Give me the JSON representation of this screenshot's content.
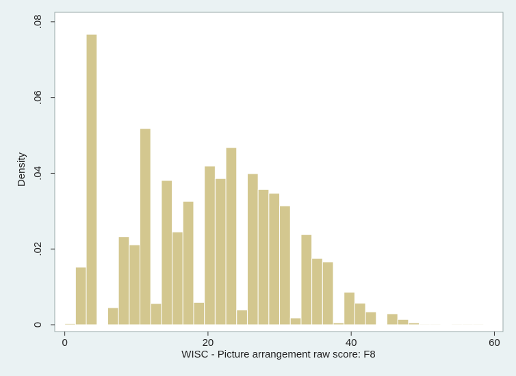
{
  "chart_data": {
    "type": "histogram",
    "x_label": "WISC - Picture arrangement raw score: F8",
    "y_label": "Density",
    "bins": [
      0,
      1.5,
      3,
      4.5,
      6,
      7.5,
      9,
      10.5,
      12,
      13.5,
      15,
      16.5,
      18,
      19.5,
      21,
      22.5,
      24,
      25.5,
      27,
      28.5,
      30,
      31.5,
      33,
      34.5,
      36,
      37.5,
      39,
      40.5,
      42,
      43.5,
      45,
      46.5,
      48,
      49.5,
      51,
      52.5,
      54,
      55.5,
      57,
      58.5
    ],
    "values": [
      0.0003,
      0.0152,
      0.0767,
      0,
      0.0045,
      0.0232,
      0.0211,
      0.0518,
      0.0056,
      0.0381,
      0.0245,
      0.0326,
      0.0059,
      0.0419,
      0.0386,
      0.0468,
      0.0039,
      0.0399,
      0.0357,
      0.0347,
      0.0314,
      0.0018,
      0.0238,
      0.0175,
      0.0166,
      0.0005,
      0.0086,
      0.0057,
      0.0034,
      0,
      0.0029,
      0.0014,
      0.0005,
      0.0002,
      0.0002,
      0,
      0.0002,
      0.0002,
      0.0002
    ],
    "color": "#d3c78f",
    "xlim": [
      -1.4,
      61.2
    ],
    "ylim": [
      -0.0018,
      0.0825
    ],
    "xticks": [
      0,
      20,
      40,
      60
    ],
    "yticks": [
      0,
      {
        "value": 0.02,
        "label": ".02"
      },
      {
        "value": 0.04,
        "label": ".04"
      },
      {
        "value": 0.06,
        "label": ".06"
      },
      {
        "value": 0.08,
        "label": ".08"
      }
    ]
  }
}
